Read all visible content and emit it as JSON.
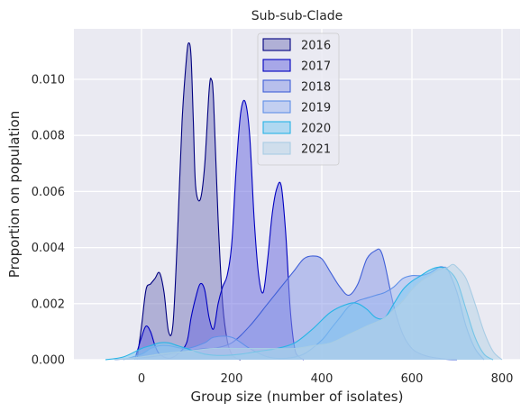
{
  "chart_data": {
    "type": "area",
    "title": "Sub-sub-Clade",
    "xlabel": "Group size (number of isolates)",
    "ylabel": "Proportion on population",
    "xlim": [
      -150,
      840
    ],
    "ylim": [
      0,
      0.0118
    ],
    "x_ticks": [
      0,
      200,
      400,
      600,
      800
    ],
    "x_tick_labels": [
      "0",
      "200",
      "400",
      "600",
      "800"
    ],
    "y_ticks": [
      0,
      0.002,
      0.004,
      0.006,
      0.008,
      0.01
    ],
    "y_tick_labels": [
      "0.000",
      "0.002",
      "0.004",
      "0.006",
      "0.008",
      "0.010"
    ],
    "grid": true,
    "legend_position": "top-center",
    "series": [
      {
        "name": "2016",
        "fill": "#8080c0",
        "stroke": "#000080",
        "x": [
          -10,
          0,
          10,
          20,
          30,
          40,
          50,
          60,
          70,
          80,
          90,
          100,
          105,
          110,
          115,
          120,
          130,
          140,
          150,
          155,
          160,
          170,
          180,
          190,
          200,
          210,
          220
        ],
        "y": [
          0,
          0.0012,
          0.0025,
          0.0027,
          0.0029,
          0.0031,
          0.0024,
          0.001,
          0.0013,
          0.0045,
          0.0085,
          0.0108,
          0.0113,
          0.0108,
          0.0085,
          0.0062,
          0.0057,
          0.0069,
          0.0096,
          0.01,
          0.0092,
          0.005,
          0.002,
          0.0007,
          0.0002,
          5e-05,
          0
        ]
      },
      {
        "name": "2017",
        "fill": "#7070e0",
        "stroke": "#0000c0",
        "x": [
          -15,
          0,
          10,
          20,
          30,
          40,
          60,
          80,
          100,
          110,
          120,
          130,
          140,
          150,
          160,
          170,
          180,
          190,
          200,
          210,
          220,
          230,
          240,
          250,
          260,
          270,
          280,
          290,
          300,
          310,
          320,
          330,
          340,
          350,
          360
        ],
        "y": [
          0,
          0.0008,
          0.0012,
          0.001,
          0.0005,
          0.0002,
          5e-05,
          0.0002,
          0.0006,
          0.0015,
          0.0022,
          0.0027,
          0.0025,
          0.0015,
          0.0011,
          0.002,
          0.0026,
          0.003,
          0.0041,
          0.0068,
          0.0088,
          0.0092,
          0.008,
          0.005,
          0.003,
          0.0024,
          0.0036,
          0.0052,
          0.0061,
          0.0062,
          0.0045,
          0.0018,
          0.0004,
          0.0001,
          0
        ]
      },
      {
        "name": "2018",
        "fill": "#8c9be8",
        "stroke": "#4060d8",
        "x": [
          -60,
          -20,
          20,
          60,
          100,
          140,
          160,
          200,
          240,
          280,
          300,
          320,
          340,
          360,
          380,
          400,
          420,
          440,
          460,
          480,
          500,
          520,
          530,
          540,
          560,
          580,
          600,
          620,
          640,
          660,
          680,
          700
        ],
        "y": [
          0,
          5e-05,
          0.0001,
          0.0002,
          0.0003,
          0.0004,
          0.0004,
          0.0006,
          0.0012,
          0.002,
          0.0024,
          0.0028,
          0.0032,
          0.0036,
          0.0037,
          0.0036,
          0.0031,
          0.0026,
          0.0023,
          0.0027,
          0.0036,
          0.0039,
          0.0039,
          0.0034,
          0.0019,
          0.0009,
          0.0004,
          0.0002,
          0.0001,
          5e-05,
          1e-05,
          0
        ]
      },
      {
        "name": "2019",
        "fill": "#a0b8f0",
        "stroke": "#6090e8",
        "x": [
          -40,
          0,
          20,
          40,
          60,
          100,
          140,
          160,
          200,
          240,
          280,
          320,
          360,
          400,
          420,
          440,
          460,
          480,
          500,
          520,
          540,
          560,
          580,
          600,
          620,
          640,
          660,
          670,
          680,
          700,
          720,
          740,
          760
        ],
        "y": [
          0,
          0.0002,
          0.0004,
          0.0005,
          0.0005,
          0.0004,
          0.0006,
          0.0008,
          0.0008,
          0.0004,
          0.0001,
          5e-05,
          0.0002,
          0.0007,
          0.0011,
          0.0015,
          0.0019,
          0.0021,
          0.0022,
          0.0023,
          0.0024,
          0.0026,
          0.0029,
          0.003,
          0.003,
          0.0031,
          0.0033,
          0.0033,
          0.0032,
          0.0024,
          0.0012,
          0.0004,
          0
        ]
      },
      {
        "name": "2020",
        "fill": "#7ec8f0",
        "stroke": "#28b4e6",
        "x": [
          -80,
          -40,
          0,
          20,
          40,
          60,
          80,
          100,
          140,
          180,
          220,
          260,
          300,
          340,
          380,
          420,
          460,
          480,
          500,
          520,
          540,
          560,
          580,
          600,
          620,
          640,
          660,
          680,
          700,
          720,
          740,
          760,
          780
        ],
        "y": [
          0,
          0.0001,
          0.0004,
          0.0005,
          0.0006,
          0.0006,
          0.0005,
          0.0004,
          0.0002,
          0.00015,
          0.0002,
          0.0003,
          0.0004,
          0.0006,
          0.0011,
          0.0017,
          0.002,
          0.002,
          0.0018,
          0.0015,
          0.0015,
          0.002,
          0.0025,
          0.0028,
          0.003,
          0.0032,
          0.0033,
          0.0032,
          0.0028,
          0.0018,
          0.0008,
          0.0002,
          0
        ]
      },
      {
        "name": "2021",
        "fill": "#b8d4e8",
        "stroke": "#a8cce4",
        "x": [
          -60,
          0,
          40,
          100,
          160,
          220,
          280,
          340,
          380,
          420,
          460,
          500,
          540,
          580,
          600,
          620,
          640,
          660,
          680,
          690,
          700,
          720,
          740,
          760,
          780,
          800
        ],
        "y": [
          0,
          0.0001,
          0.0002,
          0.0003,
          0.0004,
          0.0004,
          0.0004,
          0.0004,
          0.0005,
          0.0006,
          0.0009,
          0.0012,
          0.0015,
          0.0021,
          0.0025,
          0.0028,
          0.003,
          0.0032,
          0.0033,
          0.0034,
          0.0033,
          0.0029,
          0.002,
          0.001,
          0.0003,
          0
        ]
      }
    ]
  }
}
